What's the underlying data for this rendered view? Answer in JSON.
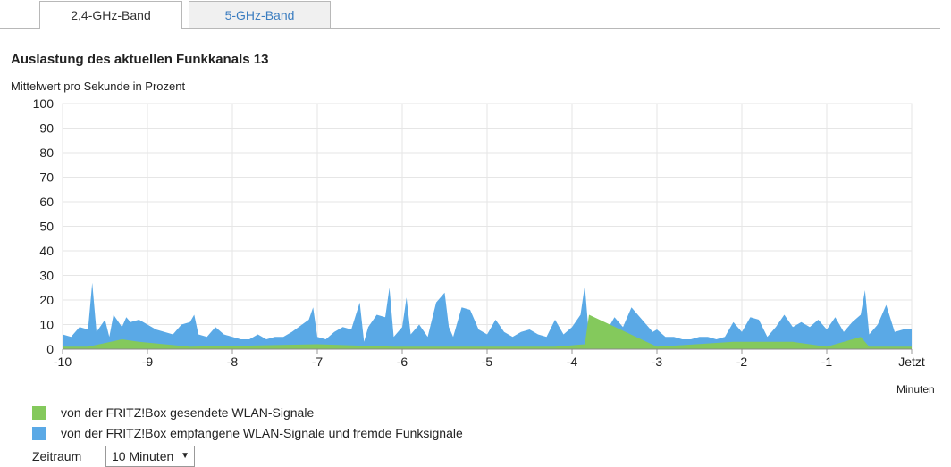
{
  "tabs": [
    {
      "label": "2,4-GHz-Band",
      "active": true
    },
    {
      "label": "5-GHz-Band",
      "active": false
    }
  ],
  "title": "Auslastung des aktuellen Funkkanals 13",
  "subtitle": "Mittelwert pro Sekunde in Prozent",
  "legend": {
    "sent": {
      "label": "von der FRITZ!Box gesendete WLAN-Signale",
      "color": "#84c95c"
    },
    "received": {
      "label": "von der FRITZ!Box empfangene WLAN-Signale und fremde Funksignale",
      "color": "#5aa9e6"
    }
  },
  "controls": {
    "zeitraum_label": "Zeitraum",
    "zeitraum_value": "10 Minuten"
  },
  "chart_data": {
    "type": "area",
    "title": "Auslastung des aktuellen Funkkanals 13",
    "ylabel": "Mittelwert pro Sekunde in Prozent",
    "xlabel": "Minuten",
    "ylim": [
      0,
      100
    ],
    "xlim": [
      -10,
      0
    ],
    "yticks": [
      "0",
      "10",
      "20",
      "30",
      "40",
      "50",
      "60",
      "70",
      "80",
      "90",
      "100"
    ],
    "xticks": [
      "-10",
      "-9",
      "-8",
      "-7",
      "-6",
      "-5",
      "-4",
      "-3",
      "-2",
      "-1",
      "Jetzt"
    ],
    "grid": true,
    "series": [
      {
        "name": "von der FRITZ!Box empfangene WLAN-Signale und fremde Funksignale",
        "color": "#5aa9e6",
        "x": [
          -10,
          -9.9,
          -9.8,
          -9.7,
          -9.65,
          -9.6,
          -9.5,
          -9.45,
          -9.4,
          -9.3,
          -9.25,
          -9.2,
          -9.1,
          -9.0,
          -8.9,
          -8.8,
          -8.7,
          -8.6,
          -8.5,
          -8.45,
          -8.4,
          -8.3,
          -8.2,
          -8.1,
          -8.0,
          -7.9,
          -7.8,
          -7.7,
          -7.6,
          -7.5,
          -7.4,
          -7.3,
          -7.1,
          -7.05,
          -7.0,
          -6.9,
          -6.8,
          -6.7,
          -6.6,
          -6.5,
          -6.45,
          -6.4,
          -6.3,
          -6.2,
          -6.15,
          -6.1,
          -6.0,
          -5.95,
          -5.9,
          -5.8,
          -5.7,
          -5.6,
          -5.5,
          -5.45,
          -5.4,
          -5.3,
          -5.2,
          -5.1,
          -5.0,
          -4.9,
          -4.8,
          -4.7,
          -4.6,
          -4.5,
          -4.4,
          -4.3,
          -4.2,
          -4.1,
          -4.0,
          -3.9,
          -3.85,
          -3.8,
          -3.7,
          -3.6,
          -3.5,
          -3.4,
          -3.3,
          -3.2,
          -3.1,
          -3.05,
          -3.0,
          -2.9,
          -2.8,
          -2.7,
          -2.6,
          -2.5,
          -2.4,
          -2.3,
          -2.2,
          -2.1,
          -2.0,
          -1.9,
          -1.8,
          -1.7,
          -1.6,
          -1.5,
          -1.4,
          -1.3,
          -1.2,
          -1.1,
          -1.0,
          -0.9,
          -0.8,
          -0.7,
          -0.6,
          -0.55,
          -0.5,
          -0.4,
          -0.3,
          -0.2,
          -0.1,
          0
        ],
        "values": [
          6,
          5,
          9,
          8,
          27,
          7,
          12,
          5,
          14,
          9,
          13,
          11,
          12,
          10,
          8,
          7,
          6,
          10,
          11,
          14,
          6,
          5,
          9,
          6,
          5,
          4,
          4,
          6,
          4,
          5,
          5,
          7,
          12,
          17,
          5,
          4,
          7,
          9,
          8,
          19,
          3,
          9,
          14,
          13,
          25,
          5,
          9,
          21,
          6,
          10,
          5,
          19,
          23,
          9,
          5,
          17,
          16,
          8,
          6,
          12,
          7,
          5,
          7,
          8,
          6,
          5,
          12,
          6,
          9,
          14,
          26,
          5,
          9,
          7,
          13,
          9,
          17,
          13,
          9,
          7,
          8,
          5,
          5,
          4,
          4,
          5,
          5,
          4,
          5,
          11,
          7,
          13,
          12,
          5,
          9,
          14,
          9,
          11,
          9,
          12,
          8,
          13,
          7,
          11,
          14,
          24,
          6,
          10,
          18,
          7,
          8,
          8
        ]
      },
      {
        "name": "von der FRITZ!Box gesendete WLAN-Signale",
        "color": "#84c95c",
        "x": [
          -10,
          -9.9,
          -9.7,
          -9.3,
          -9.1,
          -8.5,
          -7.0,
          -6.1,
          -5.9,
          -4.2,
          -3.85,
          -3.8,
          -3.0,
          -2.1,
          -1.4,
          -1.0,
          -0.6,
          -0.5,
          0
        ],
        "values": [
          1,
          1,
          1,
          4,
          3,
          1,
          2,
          1,
          1,
          1,
          2,
          14,
          1,
          3,
          3,
          1,
          5,
          1,
          1
        ]
      }
    ]
  }
}
